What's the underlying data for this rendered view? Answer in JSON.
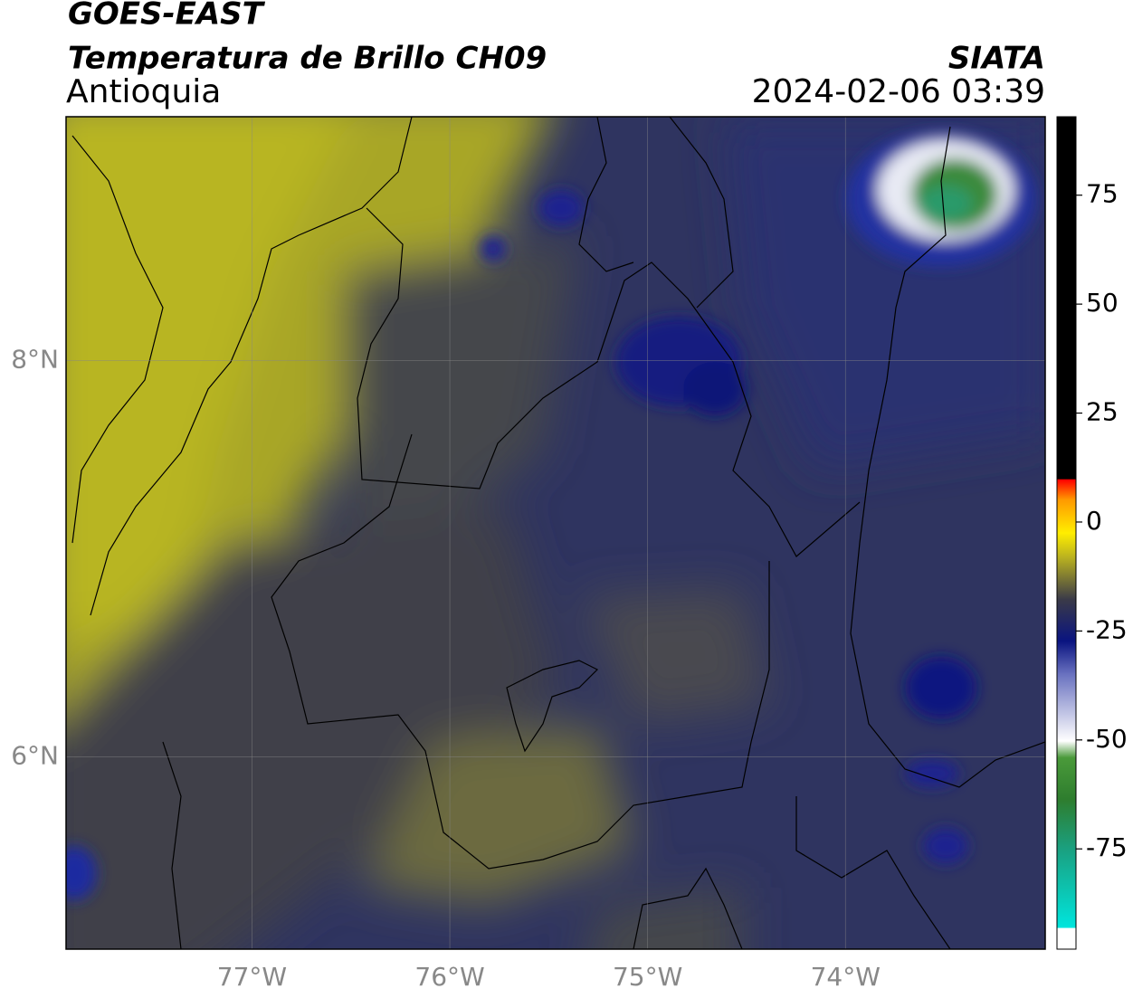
{
  "header": {
    "title": "GOES-EAST",
    "subtitle": "Temperatura de Brillo CH09",
    "region": "Antioquia",
    "source": "SIATA",
    "datetime": "2024-02-06 03:39"
  },
  "map": {
    "xlim": [
      -77.94,
      -72.99
    ],
    "ylim": [
      5.03,
      9.23
    ],
    "xticks": [
      {
        "value": -77,
        "label": "77°W"
      },
      {
        "value": -76,
        "label": "76°W"
      },
      {
        "value": -75,
        "label": "75°W"
      },
      {
        "value": -74,
        "label": "74°W"
      }
    ],
    "yticks": [
      {
        "value": 8,
        "label": "8°N"
      },
      {
        "value": 6,
        "label": "6°N"
      }
    ]
  },
  "colorbar": {
    "lim": [
      -98,
      93
    ],
    "ticks": [
      75,
      50,
      25,
      0,
      -25,
      -50,
      -75
    ]
  }
}
